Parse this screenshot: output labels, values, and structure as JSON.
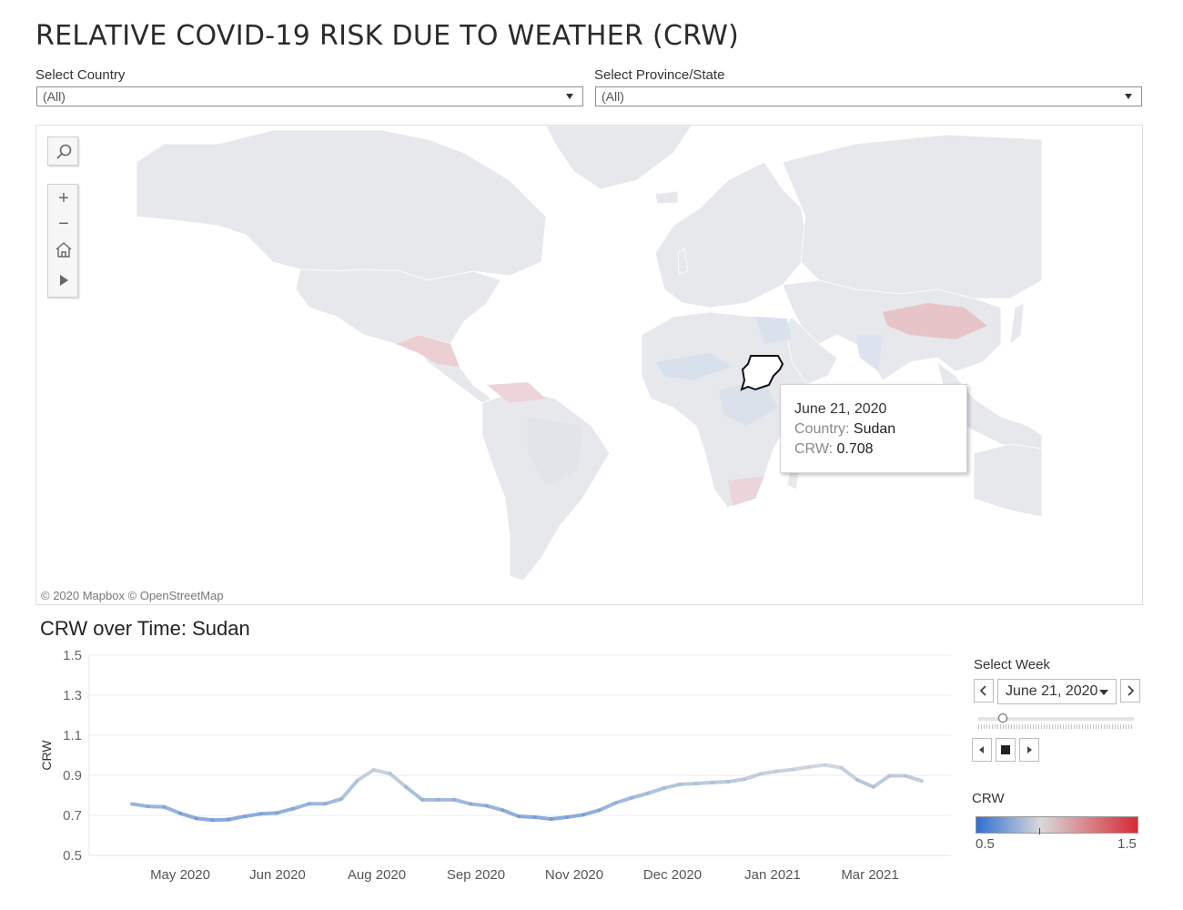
{
  "page": {
    "title": "RELATIVE COVID-19 RISK DUE TO WEATHER (CRW)"
  },
  "filters": {
    "country": {
      "label": "Select Country",
      "value": "(All)"
    },
    "province": {
      "label": "Select Province/State",
      "value": "(All)"
    }
  },
  "map": {
    "attribution": "© 2020 Mapbox  © OpenStreetMap",
    "toolbar": [
      "search-icon",
      "zoom-in-icon",
      "zoom-out-icon",
      "home-icon",
      "play-icon"
    ],
    "selected_country": "Sudan",
    "colors": {
      "land": "#e6e8ec",
      "ocean": "#ffffff",
      "border": "#ffffff"
    },
    "tooltip": {
      "date": "June 21, 2020",
      "country_key": "Country:",
      "country_value": "Sudan",
      "crw_key": "CRW:",
      "crw_value": "0.708"
    }
  },
  "chart": {
    "title": "CRW over Time: Sudan"
  },
  "chart_data": {
    "type": "line",
    "ylabel": "CRW",
    "xlabel": "",
    "ylim": [
      0.5,
      1.5
    ],
    "yticks": [
      "1.5",
      "1.3",
      "1.1",
      "0.9",
      "0.7",
      "0.5"
    ],
    "xtick_labels": [
      "May 2020",
      "Jun 2020",
      "Aug 2020",
      "Sep 2020",
      "Nov 2020",
      "Dec 2020",
      "Jan 2021",
      "Mar 2021"
    ],
    "grid": true,
    "series": [
      {
        "values": [
          0.757,
          0.745,
          0.742,
          0.71,
          0.685,
          0.676,
          0.679,
          0.695,
          0.708,
          0.712,
          0.733,
          0.758,
          0.758,
          0.782,
          0.875,
          0.927,
          0.909,
          0.842,
          0.778,
          0.778,
          0.778,
          0.757,
          0.748,
          0.726,
          0.695,
          0.691,
          0.682,
          0.691,
          0.703,
          0.726,
          0.762,
          0.788,
          0.81,
          0.836,
          0.855,
          0.859,
          0.864,
          0.868,
          0.881,
          0.907,
          0.92,
          0.929,
          0.942,
          0.952,
          0.938,
          0.877,
          0.842,
          0.898,
          0.897,
          0.872
        ]
      }
    ],
    "color_scale": {
      "min": 0.5,
      "mid": 1.0,
      "max": 1.5,
      "low_color": "#2f6fd1",
      "mid_color": "#d9d9d9",
      "high_color": "#d62a35"
    }
  },
  "controls": {
    "week_label": "Select Week",
    "week_value": "June 21, 2020",
    "prev_icon": "chevron-left-icon",
    "next_icon": "chevron-right-icon",
    "playback": [
      "step-back-icon",
      "stop-icon",
      "step-forward-icon"
    ],
    "slider_position": 0.16
  },
  "legend": {
    "title": "CRW",
    "min_label": "0.5",
    "max_label": "1.5",
    "marker_value": 1.0
  }
}
